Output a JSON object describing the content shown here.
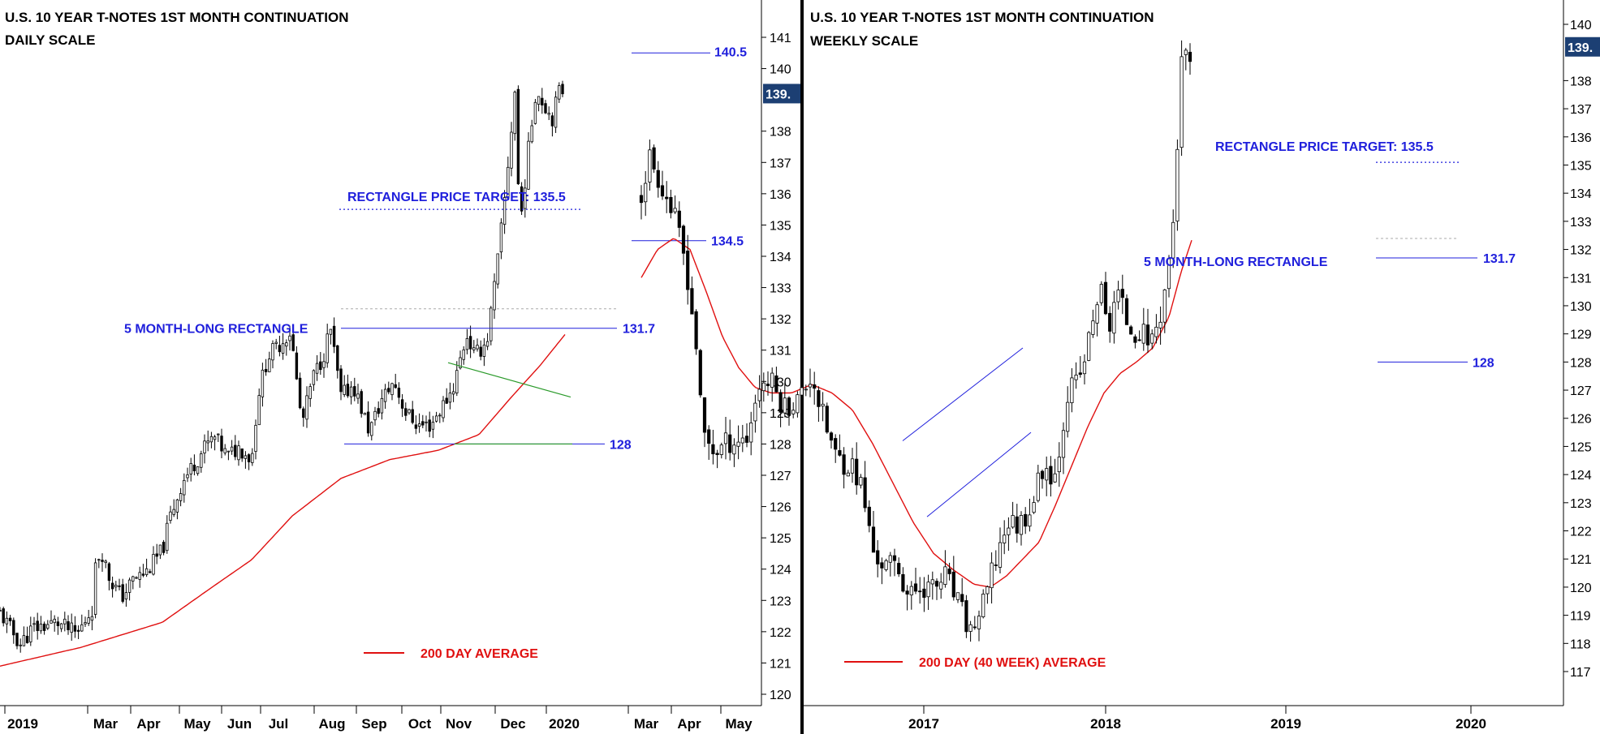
{
  "colors": {
    "candle": "#000000",
    "moving_average": "#e01010",
    "annotation_blue": "#1f1fdc",
    "trendline_green": "#2a9a2a",
    "price_box": "#1c3f73"
  },
  "chart_data": [
    {
      "type": "candlestick",
      "title": "U.S. 10 YEAR T-NOTES 1ST MONTH CONTINUATION",
      "subtitle": "DAILY SCALE",
      "x_tick_labels": [
        "2019",
        "Mar",
        "Apr",
        "May",
        "Jun",
        "Jul",
        "Aug",
        "Sep",
        "Oct",
        "Nov",
        "Dec",
        "2020",
        "Mar",
        "Apr",
        "May"
      ],
      "y_tick_labels": [
        "120",
        "121",
        "122",
        "123",
        "124",
        "125",
        "126",
        "127",
        "128",
        "129",
        "130",
        "131",
        "132",
        "133",
        "134",
        "135",
        "136",
        "137",
        "138",
        "140",
        "141"
      ],
      "ylim": [
        119.8,
        141.4
      ],
      "last_price_label": "139.",
      "last_price": 139.2,
      "series": [
        {
          "name": "price",
          "style": "candles",
          "values_anchor": [
            [
              0,
              122.6
            ],
            [
              25,
              121.6
            ],
            [
              40,
              122.1
            ],
            [
              70,
              122.3
            ],
            [
              95,
              121.9
            ],
            [
              110,
              122.6
            ],
            [
              115,
              122.8
            ],
            [
              118,
              124.2
            ],
            [
              125,
              124.6
            ],
            [
              135,
              123.7
            ],
            [
              150,
              123.1
            ],
            [
              165,
              123.7
            ],
            [
              180,
              123.9
            ],
            [
              200,
              124.6
            ],
            [
              210,
              125.7
            ],
            [
              225,
              126.8
            ],
            [
              240,
              127.4
            ],
            [
              255,
              128.0
            ],
            [
              265,
              128.2
            ],
            [
              280,
              127.6
            ],
            [
              295,
              127.9
            ],
            [
              310,
              127.5
            ],
            [
              318,
              129.6
            ],
            [
              330,
              130.8
            ],
            [
              345,
              131.2
            ],
            [
              358,
              131.6
            ],
            [
              372,
              128.6
            ],
            [
              385,
              130.1
            ],
            [
              398,
              130.8
            ],
            [
              407,
              131.7
            ],
            [
              420,
              129.5
            ],
            [
              435,
              129.9
            ],
            [
              455,
              128.4
            ],
            [
              470,
              129.4
            ],
            [
              485,
              130.0
            ],
            [
              500,
              129.0
            ],
            [
              515,
              128.6
            ],
            [
              530,
              128.6
            ],
            [
              545,
              129.2
            ],
            [
              558,
              129.8
            ],
            [
              575,
              131.5
            ],
            [
              585,
              130.8
            ],
            [
              600,
              131.3
            ],
            [
              610,
              133.2
            ],
            [
              620,
              135.4
            ],
            [
              628,
              137.5
            ],
            [
              635,
              139.5
            ],
            [
              640,
              134.8
            ],
            [
              650,
              137.2
            ],
            [
              660,
              139.3
            ],
            [
              670,
              138.9
            ],
            [
              680,
              138.4
            ],
            [
              690,
              139.4
            ],
            [
              696,
              139.2
            ]
          ]
        },
        {
          "name": "200 DAY AVERAGE",
          "style": "line",
          "values_anchor": [
            [
              0,
              120.9
            ],
            [
              100,
              121.5
            ],
            [
              200,
              122.3
            ],
            [
              260,
              123.4
            ],
            [
              310,
              124.3
            ],
            [
              360,
              125.7
            ],
            [
              420,
              126.9
            ],
            [
              480,
              127.5
            ],
            [
              540,
              127.8
            ],
            [
              590,
              128.3
            ],
            [
              630,
              129.5
            ],
            [
              665,
              130.5
            ],
            [
              696,
              131.5
            ]
          ]
        }
      ],
      "annotations": {
        "target_text": "RECTANGLE PRICE TARGET: 135.5",
        "target_value": 135.5,
        "rectangle_text": "5 MONTH-LONG RECTANGLE",
        "rect_top": 131.7,
        "rect_top_label": "131.7",
        "rect_bottom": 128,
        "rect_bottom_label": "128",
        "high_label": "140.5",
        "high_value": 140.5,
        "low_label": "134.5",
        "low_value": 134.5,
        "ma_legend": "200 DAY AVERAGE"
      }
    },
    {
      "type": "candlestick",
      "title": "U.S. 10 YEAR T-NOTES 1ST MONTH CONTINUATION",
      "subtitle": "WEEKLY SCALE",
      "x_tick_labels": [
        "2017",
        "2018",
        "2019",
        "2020"
      ],
      "y_tick_labels": [
        "117",
        "118",
        "119",
        "120",
        "121",
        "122",
        "123",
        "124",
        "125",
        "126",
        "127",
        "128",
        "129",
        "130",
        "131",
        "132",
        "133",
        "134",
        "135",
        "136",
        "137",
        "138",
        "140"
      ],
      "ylim": [
        116.2,
        140.6
      ],
      "last_price_label": "139.",
      "last_price": 139.2,
      "series": [
        {
          "name": "price",
          "style": "candles",
          "values_anchor": [
            [
              790,
              134.0
            ],
            [
              800,
              135.3
            ],
            [
              815,
              134.3
            ],
            [
              830,
              133.2
            ],
            [
              845,
              131.5
            ],
            [
              858,
              128.5
            ],
            [
              865,
              125.5
            ],
            [
              880,
              124.8
            ],
            [
              900,
              125.2
            ],
            [
              920,
              125.3
            ],
            [
              935,
              127.2
            ],
            [
              950,
              127.3
            ],
            [
              965,
              126.4
            ],
            [
              985,
              126.7
            ],
            [
              1000,
              127.6
            ],
            [
              1012,
              126.2
            ],
            [
              1030,
              124.6
            ],
            [
              1050,
              124.3
            ],
            [
              1062,
              123.5
            ],
            [
              1075,
              121.3
            ],
            [
              1090,
              120.7
            ],
            [
              1105,
              120.8
            ],
            [
              1120,
              119.6
            ],
            [
              1135,
              120.1
            ],
            [
              1150,
              119.9
            ],
            [
              1165,
              120.4
            ],
            [
              1180,
              119.4
            ],
            [
              1195,
              118.4
            ],
            [
              1210,
              119.2
            ],
            [
              1225,
              120.8
            ],
            [
              1240,
              122.3
            ],
            [
              1255,
              122.2
            ],
            [
              1270,
              122.9
            ],
            [
              1285,
              124.3
            ],
            [
              1300,
              124.0
            ],
            [
              1315,
              126.9
            ],
            [
              1330,
              127.4
            ],
            [
              1345,
              129.2
            ],
            [
              1355,
              130.8
            ],
            [
              1365,
              129.0
            ],
            [
              1375,
              130.6
            ],
            [
              1390,
              129.3
            ],
            [
              1405,
              129.0
            ],
            [
              1420,
              128.8
            ],
            [
              1432,
              130.0
            ],
            [
              1440,
              131.6
            ],
            [
              1447,
              133.5
            ],
            [
              1453,
              137.5
            ],
            [
              1458,
              139.5
            ],
            [
              1463,
              138.2
            ],
            [
              1470,
              139.0
            ]
          ]
        },
        {
          "name": "200 DAY (40 WEEK) AVERAGE",
          "style": "line",
          "values_anchor": [
            [
              790,
              131.0
            ],
            [
              810,
              132.0
            ],
            [
              830,
              132.4
            ],
            [
              850,
              132.0
            ],
            [
              870,
              130.5
            ],
            [
              890,
              128.9
            ],
            [
              910,
              127.8
            ],
            [
              930,
              127.1
            ],
            [
              950,
              126.9
            ],
            [
              975,
              126.9
            ],
            [
              1000,
              127.2
            ],
            [
              1025,
              126.9
            ],
            [
              1050,
              126.3
            ],
            [
              1075,
              125.1
            ],
            [
              1100,
              123.7
            ],
            [
              1125,
              122.3
            ],
            [
              1150,
              121.2
            ],
            [
              1175,
              120.6
            ],
            [
              1200,
              120.1
            ],
            [
              1220,
              120.0
            ],
            [
              1240,
              120.4
            ],
            [
              1260,
              121.0
            ],
            [
              1280,
              121.6
            ],
            [
              1300,
              122.9
            ],
            [
              1320,
              124.3
            ],
            [
              1340,
              125.7
            ],
            [
              1360,
              126.9
            ],
            [
              1380,
              127.6
            ],
            [
              1400,
              128.0
            ],
            [
              1420,
              128.5
            ],
            [
              1440,
              129.6
            ],
            [
              1455,
              131.2
            ],
            [
              1470,
              132.5
            ]
          ]
        }
      ],
      "annotations": {
        "target_text": "RECTANGLE PRICE TARGET: 135.5",
        "target_value": 135.5,
        "rectangle_text": "5 MONTH-LONG RECTANGLE",
        "rect_top": 131.7,
        "rect_top_label": "131.7",
        "rect_bottom": 128,
        "rect_bottom_label": "128",
        "ma_legend": "200 DAY (40 WEEK) AVERAGE"
      }
    }
  ]
}
